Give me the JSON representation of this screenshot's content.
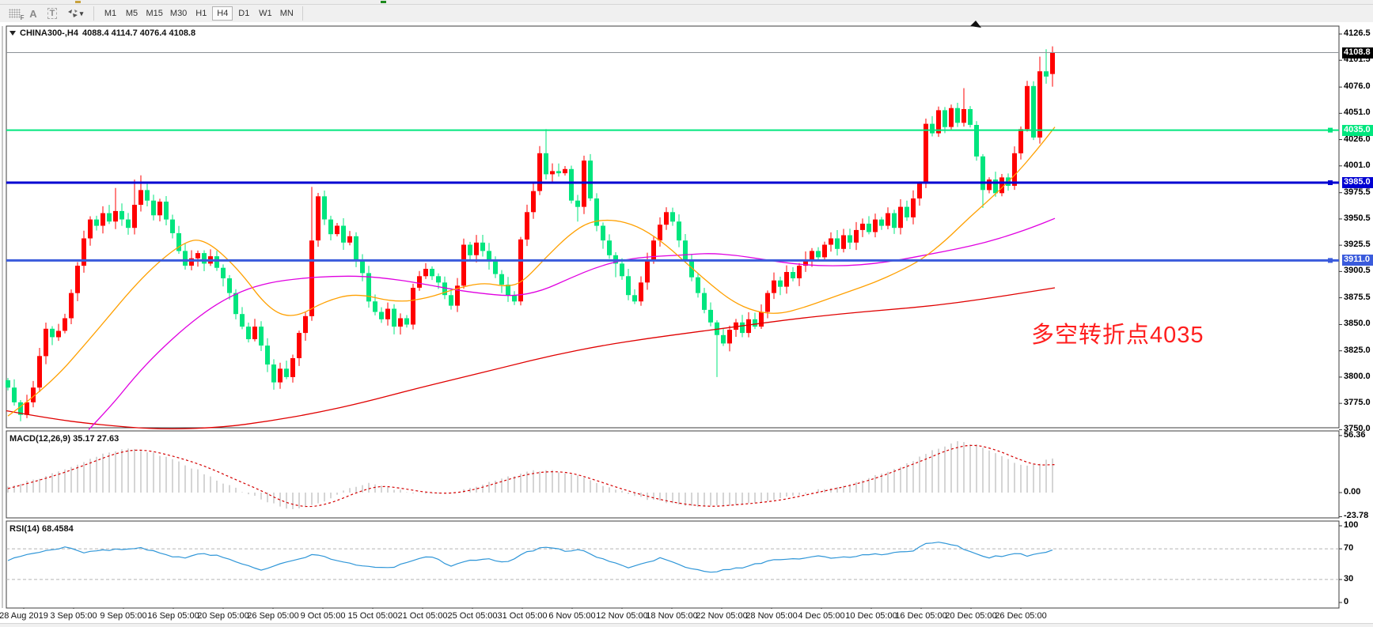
{
  "toolbar": {
    "tools": [
      {
        "name": "chart-grid-tool",
        "glyph": "F"
      },
      {
        "name": "font-tool",
        "glyph": "A"
      },
      {
        "name": "text-label-tool",
        "glyph": "T"
      },
      {
        "name": "arrow-objects-tool",
        "glyph": "▾"
      }
    ],
    "timeframes": [
      "M1",
      "M5",
      "M15",
      "M30",
      "H1",
      "H4",
      "D1",
      "W1",
      "MN"
    ],
    "active_timeframe": "H4"
  },
  "chart": {
    "symbol": "CHINA300-,H4",
    "ohlc_text": "4088.4 4114.7 4076.4 4108.8",
    "annotation": {
      "text": "多空转折点4035",
      "color": "#ff1e1e"
    },
    "current_price": {
      "label": "4108.8",
      "price": 4108.8,
      "line_color": "#8c9196",
      "badge_bg": "#000000"
    },
    "levels": [
      {
        "label": "4035.0",
        "price": 4035.0,
        "color": "#00e67e",
        "width": 2
      },
      {
        "label": "3985.0",
        "price": 3985.0,
        "color": "#0000d2",
        "width": 3
      },
      {
        "label": "3911.0",
        "price": 3911.0,
        "color": "#3a5bdc",
        "width": 3
      }
    ],
    "y_ticks": [
      "4126.5",
      "4101.5",
      "4076.0",
      "4051.0",
      "4026.0",
      "4001.0",
      "3975.5",
      "3950.5",
      "3925.5",
      "3900.5",
      "3875.5",
      "3850.0",
      "3825.0",
      "3800.0",
      "3775.0",
      "3750.0"
    ],
    "x_labels": [
      "28 Aug 2019",
      "3 Sep 05:00",
      "9 Sep 05:00",
      "16 Sep 05:00",
      "20 Sep 05:00",
      "26 Sep 05:00",
      "9 Oct 05:00",
      "15 Oct 05:00",
      "21 Oct 05:00",
      "25 Oct 05:00",
      "31 Oct 05:00",
      "6 Nov 05:00",
      "12 Nov 05:00",
      "18 Nov 05:00",
      "22 Nov 05:00",
      "28 Nov 05:00",
      "4 Dec 05:00",
      "10 Dec 05:00",
      "16 Dec 05:00",
      "20 Dec 05:00",
      "26 Dec 05:00"
    ]
  },
  "macd_panel": {
    "label": "MACD(12,26,9) 35.17 27.63",
    "ticks": [
      "56.36",
      "0.00",
      "-23.78"
    ]
  },
  "rsi_panel": {
    "label": "RSI(14) 68.4584",
    "ticks": [
      "100",
      "70",
      "30",
      "0"
    ],
    "level_lines": [
      70,
      30
    ]
  },
  "chart_data": {
    "type": "candlestick",
    "symbol": "CHINA300-",
    "timeframe": "H4",
    "price_range": [
      3750.0,
      4126.5
    ],
    "up_color": "#ff0000",
    "down_color": "#00e57e",
    "first_open": 3797,
    "closes": [
      3790,
      3776,
      3764,
      3776,
      3790,
      3820,
      3846,
      3838,
      3844,
      3856,
      3880,
      3906,
      3932,
      3950,
      3944,
      3956,
      3948,
      3958,
      3950,
      3942,
      3964,
      3978,
      3968,
      3954,
      3967,
      3950,
      3937,
      3920,
      3906,
      3913,
      3918,
      3908,
      3915,
      3904,
      3894,
      3880,
      3860,
      3848,
      3836,
      3848,
      3830,
      3812,
      3795,
      3808,
      3800,
      3818,
      3842,
      3858,
      3930,
      3972,
      3950,
      3936,
      3944,
      3928,
      3934,
      3912,
      3899,
      3872,
      3862,
      3855,
      3865,
      3848,
      3856,
      3850,
      3885,
      3896,
      3903,
      3896,
      3890,
      3878,
      3868,
      3887,
      3926,
      3916,
      3928,
      3920,
      3910,
      3898,
      3888,
      3878,
      3872,
      3931,
      3957,
      3977,
      4013,
      3993,
      3996,
      3994,
      3998,
      3968,
      3962,
      4006,
      3970,
      3944,
      3930,
      3916,
      3908,
      3896,
      3878,
      3872,
      3890,
      3912,
      3930,
      3945,
      3957,
      3948,
      3930,
      3912,
      3895,
      3880,
      3864,
      3852,
      3840,
      3832,
      3845,
      3852,
      3842,
      3855,
      3848,
      3862,
      3880,
      3892,
      3886,
      3900,
      3894,
      3906,
      3912,
      3920,
      3914,
      3926,
      3932,
      3922,
      3935,
      3928,
      3940,
      3946,
      3938,
      3950,
      3944,
      3956,
      3942,
      3962,
      3952,
      3970,
      3984,
      4041,
      4032,
      4054,
      4038,
      4056,
      4042,
      4055,
      4040,
      4010,
      3978,
      3988,
      3975,
      3990,
      3982,
      4013,
      4036,
      4077,
      4028,
      4091,
      4086,
      4108.8
    ],
    "wick_overrides": {
      "2": {
        "low": 3758
      },
      "17": {
        "high": 3980
      },
      "20": {
        "high": 3988
      },
      "21": {
        "high": 3992
      },
      "42": {
        "low": 3788
      },
      "48": {
        "high": 3981
      },
      "85": {
        "high": 4036
      },
      "90": {
        "low": 3948
      },
      "96": {
        "low": 3895
      },
      "112": {
        "low": 3800
      },
      "145": {
        "high": 4046
      },
      "151": {
        "high": 4075
      },
      "154": {
        "low": 3961
      },
      "163": {
        "high": 4105
      },
      "164": {
        "high": 4112
      },
      "165": {
        "open": 4088.4,
        "high": 4114.7,
        "low": 4076.4
      }
    },
    "last_candle": {
      "open": 4088.4,
      "high": 4114.7,
      "low": 4076.4,
      "close": 4108.8
    },
    "ma_orange": [
      [
        10,
        3763
      ],
      [
        60,
        3790
      ],
      [
        120,
        3842
      ],
      [
        180,
        3896
      ],
      [
        230,
        3928
      ],
      [
        258,
        3932
      ],
      [
        300,
        3904
      ],
      [
        340,
        3864
      ],
      [
        372,
        3856
      ],
      [
        410,
        3872
      ],
      [
        450,
        3880
      ],
      [
        500,
        3871
      ],
      [
        540,
        3875
      ],
      [
        575,
        3884
      ],
      [
        610,
        3890
      ],
      [
        640,
        3886
      ],
      [
        660,
        3890
      ],
      [
        690,
        3914
      ],
      [
        720,
        3936
      ],
      [
        745,
        3948
      ],
      [
        775,
        3950
      ],
      [
        805,
        3944
      ],
      [
        835,
        3930
      ],
      [
        865,
        3910
      ],
      [
        895,
        3890
      ],
      [
        925,
        3872
      ],
      [
        955,
        3862
      ],
      [
        985,
        3860
      ],
      [
        1015,
        3866
      ],
      [
        1045,
        3874
      ],
      [
        1075,
        3882
      ],
      [
        1105,
        3890
      ],
      [
        1135,
        3900
      ],
      [
        1165,
        3912
      ],
      [
        1195,
        3930
      ],
      [
        1225,
        3952
      ],
      [
        1255,
        3972
      ],
      [
        1285,
        3994
      ],
      [
        1310,
        4016
      ],
      [
        1333,
        4038
      ]
    ],
    "ma_magenta": [
      [
        112,
        3750
      ],
      [
        140,
        3772
      ],
      [
        170,
        3800
      ],
      [
        200,
        3824
      ],
      [
        235,
        3848
      ],
      [
        270,
        3868
      ],
      [
        305,
        3882
      ],
      [
        340,
        3890
      ],
      [
        380,
        3894
      ],
      [
        420,
        3896
      ],
      [
        460,
        3896
      ],
      [
        500,
        3893
      ],
      [
        540,
        3888
      ],
      [
        575,
        3883
      ],
      [
        615,
        3879
      ],
      [
        650,
        3877
      ],
      [
        685,
        3882
      ],
      [
        720,
        3894
      ],
      [
        755,
        3905
      ],
      [
        790,
        3912
      ],
      [
        825,
        3915
      ],
      [
        860,
        3916
      ],
      [
        895,
        3918
      ],
      [
        930,
        3916
      ],
      [
        965,
        3912
      ],
      [
        1000,
        3908
      ],
      [
        1035,
        3906
      ],
      [
        1070,
        3906
      ],
      [
        1105,
        3908
      ],
      [
        1140,
        3912
      ],
      [
        1175,
        3917
      ],
      [
        1210,
        3922
      ],
      [
        1245,
        3928
      ],
      [
        1280,
        3936
      ],
      [
        1310,
        3944
      ],
      [
        1333,
        3951
      ]
    ],
    "ma_red": [
      [
        8,
        3768
      ],
      [
        60,
        3761
      ],
      [
        120,
        3755
      ],
      [
        200,
        3750
      ],
      [
        280,
        3752
      ],
      [
        340,
        3758
      ],
      [
        400,
        3766
      ],
      [
        460,
        3776
      ],
      [
        520,
        3788
      ],
      [
        580,
        3799
      ],
      [
        640,
        3810
      ],
      [
        700,
        3821
      ],
      [
        760,
        3830
      ],
      [
        820,
        3837
      ],
      [
        880,
        3843
      ],
      [
        940,
        3849
      ],
      [
        1000,
        3855
      ],
      [
        1060,
        3860
      ],
      [
        1120,
        3864
      ],
      [
        1180,
        3868
      ],
      [
        1240,
        3874
      ],
      [
        1300,
        3881
      ],
      [
        1333,
        3885
      ]
    ],
    "macd_values": [
      35.17,
      27.63
    ],
    "macd_histogram": [
      [
        10,
        6
      ],
      [
        50,
        14
      ],
      [
        90,
        26
      ],
      [
        130,
        38
      ],
      [
        160,
        44
      ],
      [
        190,
        40
      ],
      [
        220,
        32
      ],
      [
        250,
        22
      ],
      [
        280,
        10
      ],
      [
        310,
        0
      ],
      [
        340,
        -10
      ],
      [
        370,
        -17
      ],
      [
        400,
        -12
      ],
      [
        420,
        -4
      ],
      [
        440,
        4
      ],
      [
        465,
        9
      ],
      [
        490,
        5
      ],
      [
        520,
        0
      ],
      [
        550,
        -2
      ],
      [
        580,
        1
      ],
      [
        610,
        8
      ],
      [
        640,
        15
      ],
      [
        670,
        21
      ],
      [
        700,
        22
      ],
      [
        730,
        16
      ],
      [
        760,
        8
      ],
      [
        790,
        0
      ],
      [
        820,
        -7
      ],
      [
        850,
        -11
      ],
      [
        880,
        -14
      ],
      [
        910,
        -13
      ],
      [
        940,
        -11
      ],
      [
        970,
        -8
      ],
      [
        1000,
        -4
      ],
      [
        1030,
        2
      ],
      [
        1060,
        6
      ],
      [
        1090,
        12
      ],
      [
        1120,
        20
      ],
      [
        1150,
        30
      ],
      [
        1180,
        42
      ],
      [
        1210,
        50
      ],
      [
        1240,
        46
      ],
      [
        1270,
        34
      ],
      [
        1290,
        27
      ],
      [
        1310,
        28
      ],
      [
        1333,
        35.17
      ]
    ],
    "macd_signal": [
      [
        10,
        4
      ],
      [
        60,
        14
      ],
      [
        110,
        28
      ],
      [
        150,
        40
      ],
      [
        180,
        43
      ],
      [
        220,
        36
      ],
      [
        260,
        26
      ],
      [
        300,
        12
      ],
      [
        330,
        2
      ],
      [
        360,
        -10
      ],
      [
        390,
        -15
      ],
      [
        420,
        -10
      ],
      [
        450,
        0
      ],
      [
        480,
        7
      ],
      [
        510,
        4
      ],
      [
        540,
        0
      ],
      [
        570,
        -1
      ],
      [
        600,
        3
      ],
      [
        630,
        10
      ],
      [
        660,
        17
      ],
      [
        690,
        21
      ],
      [
        720,
        20
      ],
      [
        750,
        13
      ],
      [
        780,
        5
      ],
      [
        810,
        -2
      ],
      [
        840,
        -8
      ],
      [
        870,
        -12
      ],
      [
        900,
        -14
      ],
      [
        930,
        -12
      ],
      [
        960,
        -10
      ],
      [
        990,
        -7
      ],
      [
        1020,
        -2
      ],
      [
        1050,
        3
      ],
      [
        1080,
        8
      ],
      [
        1110,
        15
      ],
      [
        1140,
        24
      ],
      [
        1170,
        33
      ],
      [
        1200,
        43
      ],
      [
        1230,
        48
      ],
      [
        1260,
        42
      ],
      [
        1290,
        32
      ],
      [
        1310,
        27
      ],
      [
        1333,
        27.63
      ]
    ],
    "rsi_value": 68.4584,
    "rsi_points": [
      [
        10,
        55
      ],
      [
        30,
        62
      ],
      [
        60,
        68
      ],
      [
        85,
        73
      ],
      [
        105,
        65
      ],
      [
        130,
        68
      ],
      [
        155,
        70
      ],
      [
        180,
        71
      ],
      [
        205,
        63
      ],
      [
        230,
        58
      ],
      [
        255,
        64
      ],
      [
        280,
        60
      ],
      [
        305,
        50
      ],
      [
        330,
        43
      ],
      [
        355,
        50
      ],
      [
        380,
        58
      ],
      [
        400,
        63
      ],
      [
        420,
        55
      ],
      [
        445,
        50
      ],
      [
        470,
        47
      ],
      [
        495,
        44
      ],
      [
        520,
        55
      ],
      [
        545,
        60
      ],
      [
        570,
        48
      ],
      [
        590,
        54
      ],
      [
        615,
        58
      ],
      [
        640,
        52
      ],
      [
        660,
        64
      ],
      [
        680,
        70
      ],
      [
        695,
        73
      ],
      [
        715,
        66
      ],
      [
        735,
        70
      ],
      [
        755,
        58
      ],
      [
        775,
        52
      ],
      [
        795,
        45
      ],
      [
        815,
        52
      ],
      [
        835,
        58
      ],
      [
        855,
        50
      ],
      [
        875,
        44
      ],
      [
        895,
        40
      ],
      [
        915,
        42
      ],
      [
        935,
        45
      ],
      [
        955,
        50
      ],
      [
        975,
        55
      ],
      [
        995,
        57
      ],
      [
        1015,
        58
      ],
      [
        1035,
        60
      ],
      [
        1055,
        58
      ],
      [
        1075,
        60
      ],
      [
        1095,
        62
      ],
      [
        1115,
        63
      ],
      [
        1135,
        66
      ],
      [
        1155,
        68
      ],
      [
        1170,
        76
      ],
      [
        1190,
        78
      ],
      [
        1210,
        73
      ],
      [
        1230,
        64
      ],
      [
        1250,
        59
      ],
      [
        1270,
        61
      ],
      [
        1285,
        64
      ],
      [
        1300,
        60
      ],
      [
        1315,
        64
      ],
      [
        1333,
        68.46
      ]
    ]
  }
}
